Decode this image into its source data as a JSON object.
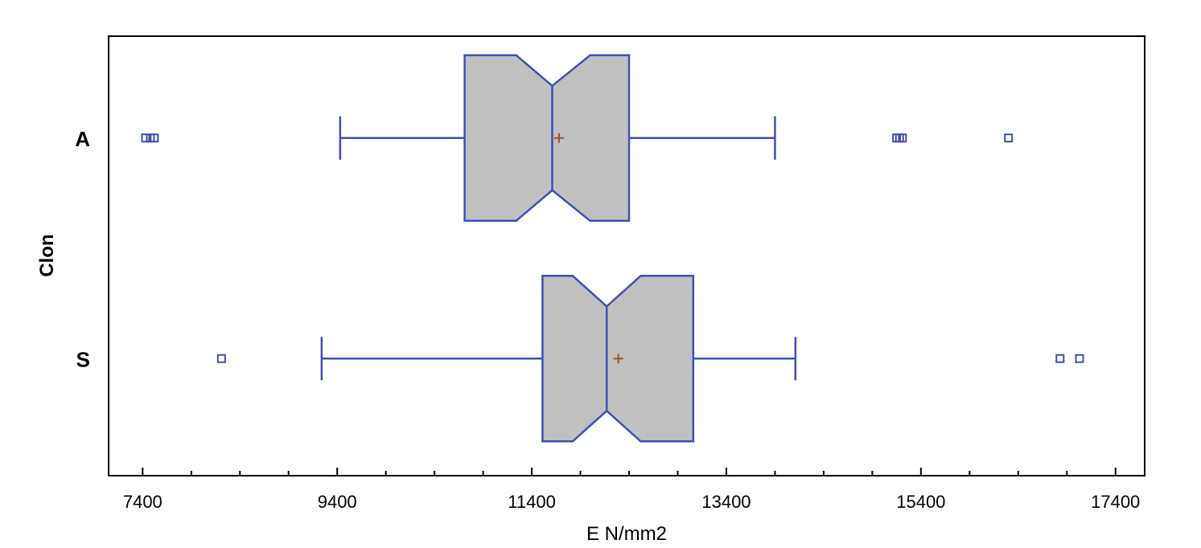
{
  "chart_data": {
    "type": "boxplot",
    "orientation": "horizontal",
    "notched": true,
    "xlabel": "E N/mm2",
    "ylabel": "Clon",
    "xlim": [
      7050,
      17700
    ],
    "xticks": [
      7400,
      9400,
      11400,
      13400,
      15400,
      17400
    ],
    "xtick_labels": [
      "7400",
      "9400",
      "11400",
      "13400",
      "15400",
      "17400"
    ],
    "grid": false,
    "colors": {
      "box_fill": "#c0c0c0",
      "box_stroke": "#3c50b4",
      "mean_marker": "#a0522d",
      "outlier": "#3c50b4",
      "axis": "#000000"
    },
    "categories": [
      "A",
      "S"
    ],
    "series": [
      {
        "category": "A",
        "whisker_low": 9430,
        "q1": 10710,
        "notch_low": 11240,
        "median": 11610,
        "notch_high": 12000,
        "q3": 12400,
        "whisker_high": 13900,
        "mean": 11680,
        "outliers": [
          7430,
          7480,
          7520,
          15150,
          15180,
          15210,
          16300
        ]
      },
      {
        "category": "S",
        "whisker_low": 9240,
        "q1": 11510,
        "notch_low": 11820,
        "median": 12170,
        "notch_high": 12520,
        "q3": 13060,
        "whisker_high": 14110,
        "mean": 12290,
        "outliers": [
          8210,
          16830,
          17030
        ]
      }
    ]
  }
}
